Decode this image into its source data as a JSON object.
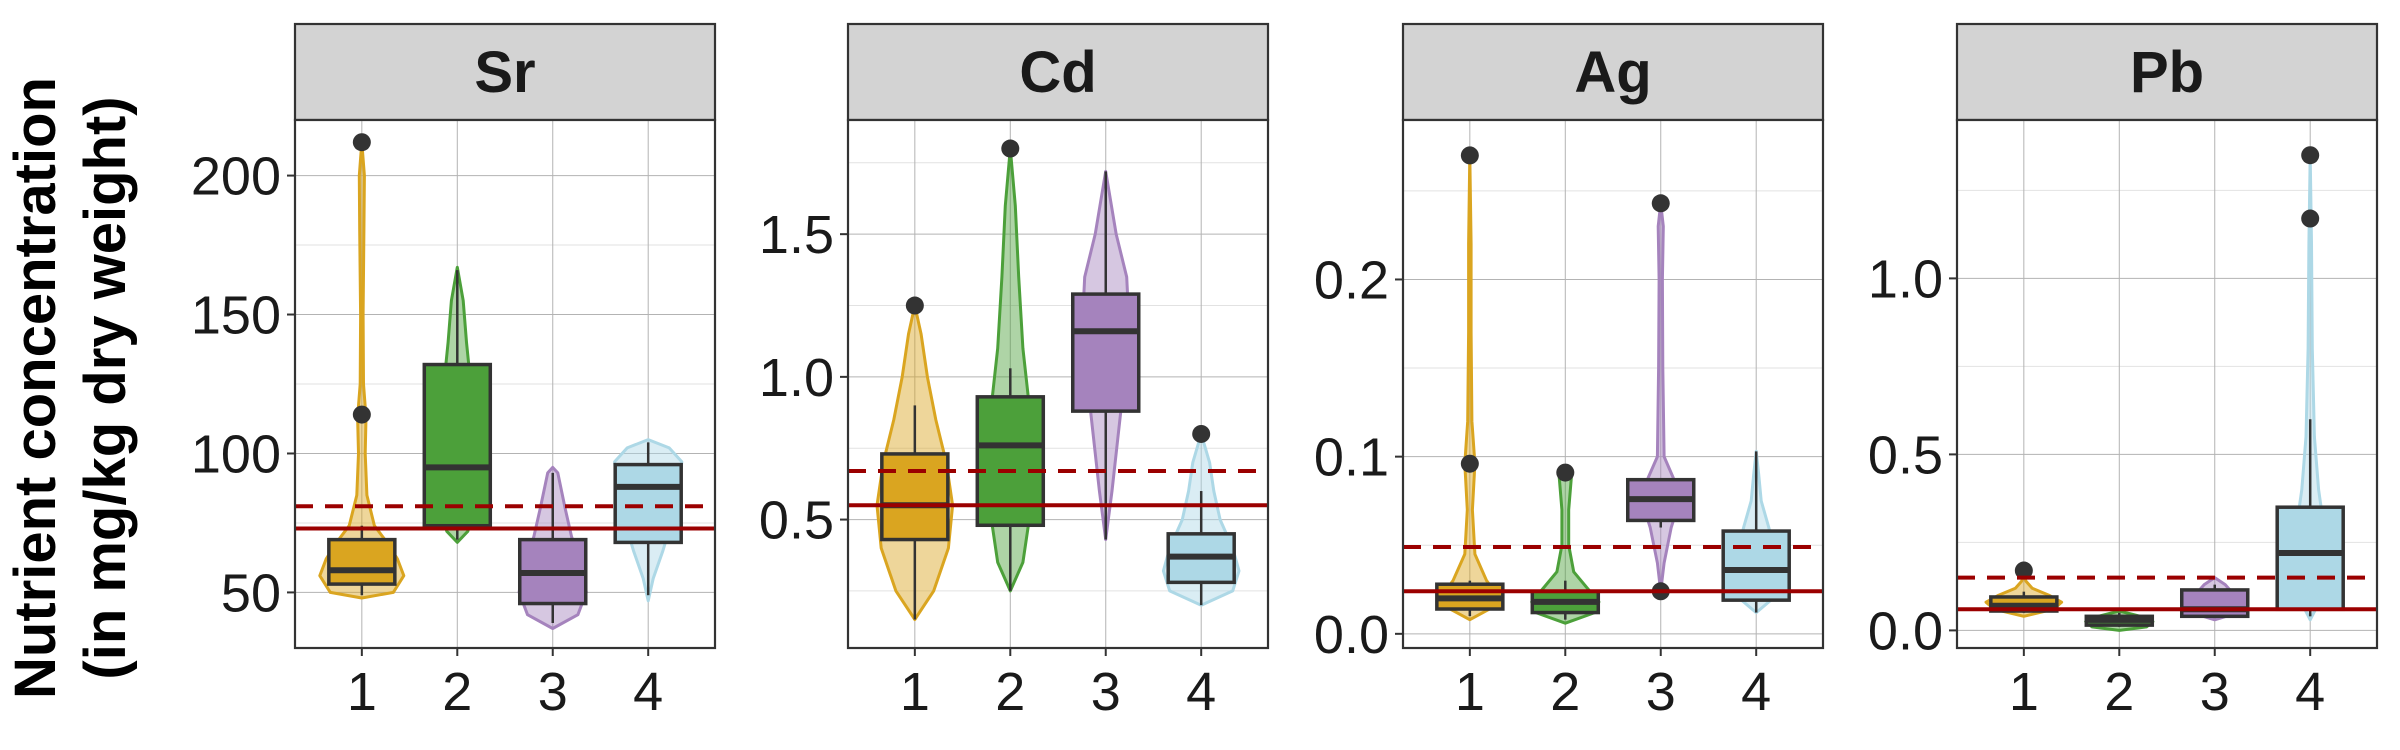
{
  "ylabel_line1": "Nutrient concentration",
  "ylabel_line2": "(in mg/kg dry weight)",
  "colors": {
    "g1": "#DAA520",
    "g2": "#4CA03A",
    "g3": "#A583BD",
    "g4": "#ADD8E6",
    "reference_line": "#9B0000"
  },
  "chart_data": [
    {
      "type": "violin-box",
      "title": "Sr",
      "categories": [
        "1",
        "2",
        "3",
        "4"
      ],
      "yticks": [
        50,
        100,
        150,
        200
      ],
      "ylabels": [
        "50",
        "100",
        "150",
        "200"
      ],
      "ylim": [
        30,
        220
      ],
      "reference_solid": 73,
      "reference_dashed": 81,
      "groups": [
        {
          "box": [
            49,
            53,
            58,
            69,
            74
          ],
          "outliers": [
            114,
            212
          ],
          "violin": [
            [
              48,
              0.0
            ],
            [
              50,
              0.75
            ],
            [
              56,
              1.0
            ],
            [
              62,
              0.85
            ],
            [
              68,
              0.6
            ],
            [
              74,
              0.3
            ],
            [
              85,
              0.12
            ],
            [
              100,
              0.08
            ],
            [
              113,
              0.1
            ],
            [
              125,
              0.04
            ],
            [
              150,
              0.03
            ],
            [
              180,
              0.05
            ],
            [
              200,
              0.06
            ],
            [
              212,
              0.0
            ]
          ]
        },
        {
          "box": [
            69,
            74,
            95,
            132,
            166
          ],
          "outliers": [],
          "violin": [
            [
              68,
              0.0
            ],
            [
              72,
              0.25
            ],
            [
              80,
              0.4
            ],
            [
              95,
              0.55
            ],
            [
              110,
              0.45
            ],
            [
              125,
              0.32
            ],
            [
              140,
              0.22
            ],
            [
              155,
              0.14
            ],
            [
              167,
              0.0
            ]
          ]
        },
        {
          "box": [
            39,
            46,
            57,
            69,
            93
          ],
          "outliers": [],
          "violin": [
            [
              37,
              0.0
            ],
            [
              42,
              0.6
            ],
            [
              50,
              0.8
            ],
            [
              60,
              0.7
            ],
            [
              70,
              0.45
            ],
            [
              80,
              0.3
            ],
            [
              93,
              0.12
            ],
            [
              95,
              0.0
            ]
          ]
        },
        {
          "box": [
            49,
            68,
            88,
            96,
            104
          ],
          "outliers": [],
          "violin": [
            [
              47,
              0.0
            ],
            [
              55,
              0.12
            ],
            [
              65,
              0.35
            ],
            [
              75,
              0.55
            ],
            [
              88,
              0.75
            ],
            [
              97,
              0.8
            ],
            [
              102,
              0.5
            ],
            [
              105,
              0.0
            ]
          ]
        }
      ]
    },
    {
      "type": "violin-box",
      "title": "Cd",
      "categories": [
        "1",
        "2",
        "3",
        "4"
      ],
      "yticks": [
        0.5,
        1.0,
        1.5
      ],
      "ylabels": [
        "0.5",
        "1.0",
        "1.5"
      ],
      "ylim": [
        0.05,
        1.9
      ],
      "reference_solid": 0.55,
      "reference_dashed": 0.67,
      "groups": [
        {
          "box": [
            0.15,
            0.43,
            0.55,
            0.73,
            0.9
          ],
          "outliers": [
            1.25
          ],
          "violin": [
            [
              0.15,
              0.0
            ],
            [
              0.25,
              0.45
            ],
            [
              0.4,
              0.8
            ],
            [
              0.55,
              0.9
            ],
            [
              0.7,
              0.75
            ],
            [
              0.85,
              0.5
            ],
            [
              1.0,
              0.3
            ],
            [
              1.15,
              0.15
            ],
            [
              1.25,
              0.0
            ]
          ]
        },
        {
          "box": [
            0.25,
            0.48,
            0.76,
            0.93,
            1.03
          ],
          "outliers": [
            1.8
          ],
          "violin": [
            [
              0.25,
              0.0
            ],
            [
              0.35,
              0.3
            ],
            [
              0.5,
              0.45
            ],
            [
              0.7,
              0.5
            ],
            [
              0.9,
              0.45
            ],
            [
              1.1,
              0.3
            ],
            [
              1.35,
              0.2
            ],
            [
              1.6,
              0.12
            ],
            [
              1.8,
              0.0
            ]
          ]
        },
        {
          "box": [
            0.43,
            0.88,
            1.16,
            1.29,
            1.72
          ],
          "outliers": [],
          "violin": [
            [
              0.43,
              0.0
            ],
            [
              0.6,
              0.15
            ],
            [
              0.8,
              0.3
            ],
            [
              1.0,
              0.45
            ],
            [
              1.2,
              0.55
            ],
            [
              1.35,
              0.5
            ],
            [
              1.5,
              0.25
            ],
            [
              1.72,
              0.0
            ]
          ]
        },
        {
          "box": [
            0.2,
            0.28,
            0.37,
            0.45,
            0.6
          ],
          "outliers": [
            0.8
          ],
          "violin": [
            [
              0.2,
              0.0
            ],
            [
              0.25,
              0.75
            ],
            [
              0.32,
              0.9
            ],
            [
              0.4,
              0.75
            ],
            [
              0.5,
              0.45
            ],
            [
              0.6,
              0.3
            ],
            [
              0.7,
              0.2
            ],
            [
              0.8,
              0.0
            ]
          ]
        }
      ]
    },
    {
      "type": "violin-box",
      "title": "Ag",
      "categories": [
        "1",
        "2",
        "3",
        "4"
      ],
      "yticks": [
        0.0,
        0.1,
        0.2
      ],
      "ylabels": [
        "0.0",
        "0.1",
        "0.2"
      ],
      "ylim": [
        -0.008,
        0.29
      ],
      "reference_solid": 0.024,
      "reference_dashed": 0.049,
      "groups": [
        {
          "box": [
            0.01,
            0.014,
            0.02,
            0.028,
            0.03
          ],
          "outliers": [
            0.096,
            0.27
          ],
          "violin": [
            [
              0.008,
              0.0
            ],
            [
              0.015,
              0.55
            ],
            [
              0.022,
              0.65
            ],
            [
              0.03,
              0.4
            ],
            [
              0.045,
              0.12
            ],
            [
              0.07,
              0.06
            ],
            [
              0.096,
              0.12
            ],
            [
              0.12,
              0.05
            ],
            [
              0.17,
              0.03
            ],
            [
              0.22,
              0.03
            ],
            [
              0.27,
              0.0
            ]
          ]
        },
        {
          "box": [
            0.008,
            0.012,
            0.018,
            0.024,
            0.03
          ],
          "outliers": [
            0.091
          ],
          "violin": [
            [
              0.006,
              0.0
            ],
            [
              0.012,
              0.7
            ],
            [
              0.018,
              0.8
            ],
            [
              0.025,
              0.55
            ],
            [
              0.035,
              0.2
            ],
            [
              0.05,
              0.08
            ],
            [
              0.07,
              0.08
            ],
            [
              0.09,
              0.15
            ],
            [
              0.092,
              0.0
            ]
          ]
        },
        {
          "box": [
            0.06,
            0.064,
            0.076,
            0.087,
            0.087
          ],
          "outliers": [
            0.024,
            0.243
          ],
          "violin": [
            [
              0.024,
              0.0
            ],
            [
              0.04,
              0.08
            ],
            [
              0.06,
              0.25
            ],
            [
              0.075,
              0.45
            ],
            [
              0.088,
              0.3
            ],
            [
              0.1,
              0.08
            ],
            [
              0.15,
              0.05
            ],
            [
              0.2,
              0.04
            ],
            [
              0.23,
              0.06
            ],
            [
              0.243,
              0.0
            ]
          ]
        },
        {
          "box": [
            0.012,
            0.019,
            0.036,
            0.058,
            0.103
          ],
          "outliers": [],
          "violin": [
            [
              0.012,
              0.0
            ],
            [
              0.02,
              0.4
            ],
            [
              0.035,
              0.45
            ],
            [
              0.05,
              0.4
            ],
            [
              0.06,
              0.3
            ],
            [
              0.075,
              0.12
            ],
            [
              0.09,
              0.06
            ],
            [
              0.103,
              0.0
            ]
          ]
        }
      ]
    },
    {
      "type": "violin-box",
      "title": "Pb",
      "categories": [
        "1",
        "2",
        "3",
        "4"
      ],
      "yticks": [
        0.0,
        0.5,
        1.0
      ],
      "ylabels": [
        "0.0",
        "0.5",
        "1.0"
      ],
      "ylim": [
        -0.05,
        1.45
      ],
      "reference_solid": 0.06,
      "reference_dashed": 0.15,
      "groups": [
        {
          "box": [
            0.05,
            0.055,
            0.07,
            0.095,
            0.11
          ],
          "outliers": [
            0.17
          ],
          "violin": [
            [
              0.04,
              0.0
            ],
            [
              0.06,
              0.7
            ],
            [
              0.08,
              0.9
            ],
            [
              0.1,
              0.6
            ],
            [
              0.12,
              0.2
            ],
            [
              0.14,
              0.05
            ],
            [
              0.16,
              0.0
            ]
          ]
        },
        {
          "box": [
            0.01,
            0.015,
            0.03,
            0.04,
            0.05
          ],
          "outliers": [],
          "violin": [
            [
              0.0,
              0.0
            ],
            [
              0.01,
              0.65
            ],
            [
              0.025,
              0.8
            ],
            [
              0.04,
              0.5
            ],
            [
              0.055,
              0.0
            ]
          ]
        },
        {
          "box": [
            0.035,
            0.04,
            0.06,
            0.115,
            0.13
          ],
          "outliers": [],
          "violin": [
            [
              0.03,
              0.0
            ],
            [
              0.05,
              0.55
            ],
            [
              0.08,
              0.5
            ],
            [
              0.11,
              0.4
            ],
            [
              0.13,
              0.25
            ],
            [
              0.15,
              0.0
            ]
          ]
        },
        {
          "box": [
            0.04,
            0.06,
            0.22,
            0.35,
            0.6
          ],
          "outliers": [
            1.17,
            1.35
          ],
          "violin": [
            [
              0.03,
              0.0
            ],
            [
              0.1,
              0.3
            ],
            [
              0.2,
              0.35
            ],
            [
              0.3,
              0.32
            ],
            [
              0.4,
              0.2
            ],
            [
              0.55,
              0.1
            ],
            [
              0.8,
              0.05
            ],
            [
              1.1,
              0.03
            ],
            [
              1.35,
              0.0
            ]
          ]
        }
      ]
    }
  ]
}
